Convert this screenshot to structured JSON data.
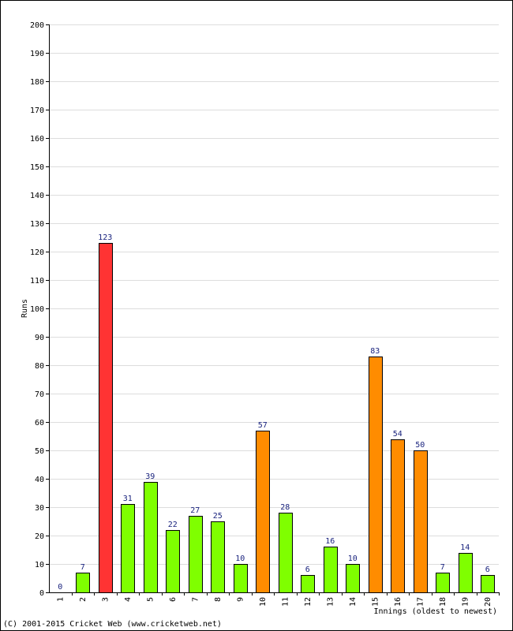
{
  "chart_data": {
    "type": "bar",
    "categories": [
      "1",
      "2",
      "3",
      "4",
      "5",
      "6",
      "7",
      "8",
      "9",
      "10",
      "11",
      "12",
      "13",
      "14",
      "15",
      "16",
      "17",
      "18",
      "19",
      "20"
    ],
    "values": [
      0,
      7,
      123,
      31,
      39,
      22,
      27,
      25,
      10,
      57,
      28,
      6,
      16,
      10,
      83,
      54,
      50,
      7,
      14,
      6
    ],
    "bar_colors": [
      "#7fff00",
      "#7fff00",
      "#ff3333",
      "#7fff00",
      "#7fff00",
      "#7fff00",
      "#7fff00",
      "#7fff00",
      "#7fff00",
      "#ff8c00",
      "#7fff00",
      "#7fff00",
      "#7fff00",
      "#7fff00",
      "#ff8c00",
      "#ff8c00",
      "#ff8c00",
      "#7fff00",
      "#7fff00",
      "#7fff00"
    ],
    "xlabel": "Innings (oldest to newest)",
    "ylabel": "Runs",
    "ylim": [
      0,
      200
    ],
    "ytick_step": 10,
    "grid": true
  },
  "footer": {
    "copyright": "(C) 2001-2015 Cricket Web (www.cricketweb.net)"
  }
}
